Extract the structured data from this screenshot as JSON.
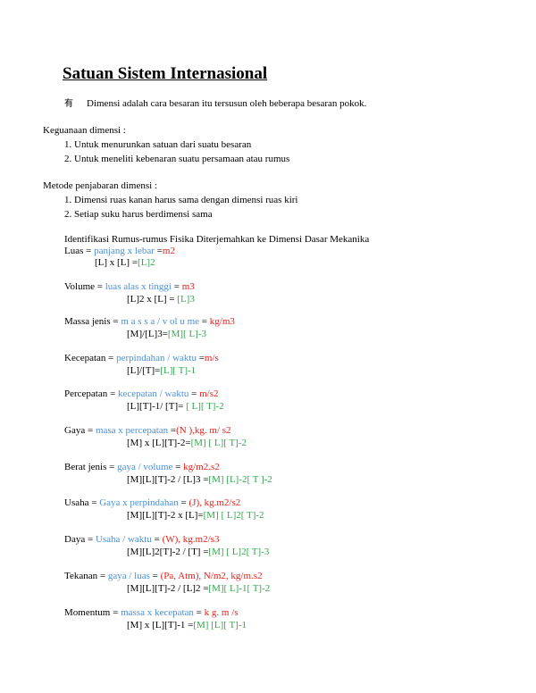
{
  "title": "Satuan Sistem Internasional",
  "intro": {
    "bullet": "有",
    "text": "Dimensi adalah cara besaran itu tersusun oleh beberapa besaran pokok."
  },
  "kegunaan": {
    "heading": "Keguanaan dimensi :",
    "items": [
      "1. Untuk menurunkan satuan dari suatu besaran",
      "2. Untuk meneliti kebenaran suatu persamaan atau rumus"
    ]
  },
  "metode": {
    "heading": "Metode penjabaran dimensi :",
    "items": [
      "1. Dimensi ruas kanan harus sama dengan dimensi ruas kiri",
      "2. Setiap suku harus berdimensi sama"
    ]
  },
  "ident_heading": "Identifikasi Rumus-rumus Fisika Diterjemahkan ke Dimensi Dasar Mekanika",
  "formulas": [
    {
      "name": "Luas",
      "eq1": " = ",
      "formula": "panjang x lebar",
      "eq2": " =",
      "unit": "m2",
      "dims": "[L] x [L] =",
      "dim2": "[L]2"
    },
    {
      "name": "Volume",
      "eq1": " =  ",
      "formula": "luas alas x tinggi",
      "eq2": "  =  ",
      "unit": "m3",
      "dims": "[L]2 x [L] =",
      "dim2": " [L]3"
    },
    {
      "name": "Massa jenis",
      "eq1": "  =  ",
      "formula": "m a s s a / v ol u me",
      "eq2": "  =  ",
      "unit": "kg/m3",
      "dims": "[M]/[L]3=",
      "dim2": "[M][ L]-3"
    },
    {
      "name": "Kecepatan",
      "eq1": "  =  ",
      "formula": "perpindahan / waktu",
      "eq2": " =",
      "unit": "m/s",
      "dims": "[L]/[T]=",
      "dim2": "[L][ T]-1"
    },
    {
      "name": "Percepatan",
      "eq1": " =  ",
      "formula": "kecepatan / waktu",
      "eq2": "  =  ",
      "unit": "m/s2",
      "dims": "[L][T]-1/ [T]=",
      "dim2": " [ L][ T]-2"
    },
    {
      "name": "Gaya",
      "eq1": " = ",
      "formula": "masa x percepatan",
      "eq2": " =",
      "unit": "(N ),kg. m/ s2",
      "dims": "[M] x [L][T]-2=",
      "dim2": "[M] [ L][ T]-2"
    },
    {
      "name": "Berat jenis",
      "eq1": "  =  ",
      "formula": "gaya / volume",
      "eq2": "  =  ",
      "unit": "kg/m2.s2",
      "dims": "[M][L][T]-2 / [L]3 =",
      "dim2": "[M] [L]-2[ T ]-2"
    },
    {
      "name": "Usaha",
      "eq1": " = ",
      "formula": "Gaya x perpindahan",
      "eq2": "  =  ",
      "unit": "(J), kg.m2/s2",
      "dims": "[M][L][T]-2 x [L]=",
      "dim2": "[M] [ L]2[ T]-2"
    },
    {
      "name": "Daya",
      "eq1": " = ",
      "formula": "Usaha / waktu",
      "eq2": "  =  ",
      "unit": "(W), kg.m2/s3",
      "dims": "[M][L]2[T]-2 / [T] =",
      "dim2": "[M] [ L]2[ T]-3"
    },
    {
      "name": "Tekanan",
      "eq1": " =  ",
      "formula": "gaya / luas",
      "eq2": "  =  ",
      "unit": "(Pa, Atm), N/m2, kg/m.s2",
      "dims": "[M][L][T]-2 / [L]2 =",
      "dim2": "[M][ L]-1[ T]-2"
    },
    {
      "name": "Momentum",
      "eq1": " =  ",
      "formula": "massa x kecepatan",
      "eq2": "  =  ",
      "unit": "k g. m /s",
      "dims": "[M] x [L][T]-1 =",
      "dim2": "[M] [L][ T]-1"
    }
  ]
}
